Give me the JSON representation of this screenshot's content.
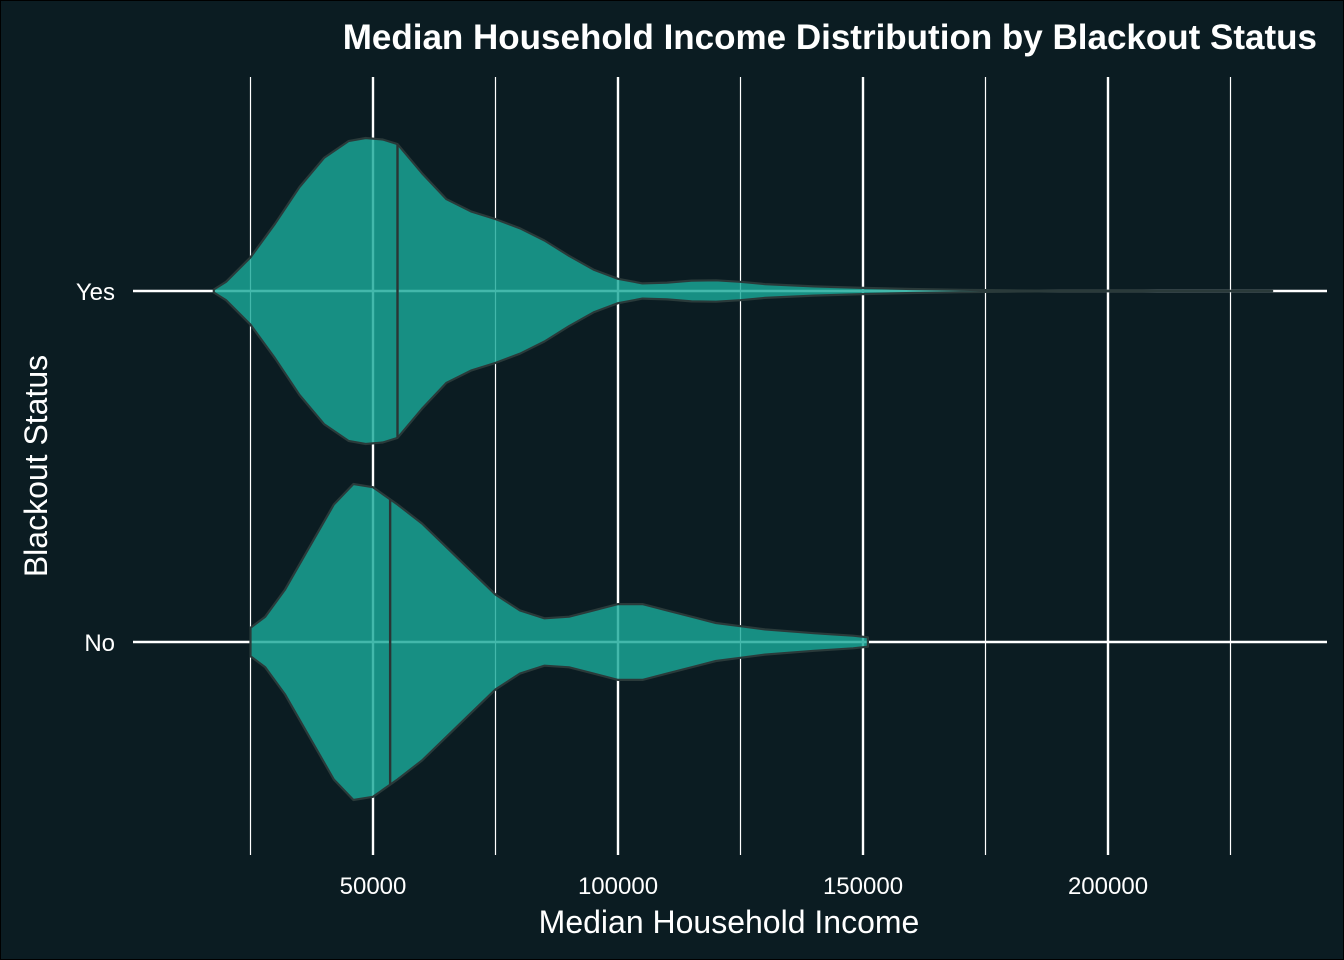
{
  "chart_data": {
    "type": "violin",
    "orientation": "horizontal",
    "title": "Median Household Income Distribution by Blackout Status",
    "xlabel": "Median Household Income",
    "ylabel": "Blackout Status",
    "xlim": [
      15000,
      246000
    ],
    "x_major_ticks": [
      50000,
      100000,
      150000,
      200000
    ],
    "x_minor_ticks": [
      25000,
      75000,
      125000,
      175000,
      225000
    ],
    "categories": [
      "Yes",
      "No"
    ],
    "grid": true,
    "legend": "none",
    "colors": {
      "background": "#0b1c22",
      "violin_fill": "#1aa898",
      "violin_stroke": "#2a3a3a",
      "median_line": "#2a3535",
      "grid": "#ffffff",
      "text": "#ffffff"
    },
    "series": [
      {
        "category": "Yes",
        "min": 17500,
        "max": 233500,
        "median": 55000,
        "density": [
          [
            17500,
            0.01
          ],
          [
            20000,
            0.06
          ],
          [
            25000,
            0.22
          ],
          [
            30000,
            0.44
          ],
          [
            35000,
            0.68
          ],
          [
            40000,
            0.87
          ],
          [
            45000,
            0.98
          ],
          [
            48500,
            1.0
          ],
          [
            52000,
            0.99
          ],
          [
            55000,
            0.96
          ],
          [
            60000,
            0.77
          ],
          [
            65000,
            0.6
          ],
          [
            70000,
            0.52
          ],
          [
            75000,
            0.47
          ],
          [
            80000,
            0.41
          ],
          [
            85000,
            0.33
          ],
          [
            90000,
            0.23
          ],
          [
            95000,
            0.14
          ],
          [
            100000,
            0.08
          ],
          [
            105000,
            0.05
          ],
          [
            110000,
            0.055
          ],
          [
            115000,
            0.068
          ],
          [
            120000,
            0.07
          ],
          [
            125000,
            0.06
          ],
          [
            130000,
            0.045
          ],
          [
            140000,
            0.03
          ],
          [
            150000,
            0.02
          ],
          [
            160000,
            0.013
          ],
          [
            170000,
            0.008
          ],
          [
            180000,
            0.004
          ],
          [
            190000,
            0.002
          ],
          [
            210000,
            0.001
          ],
          [
            233500,
            0.0005
          ]
        ]
      },
      {
        "category": "No",
        "min": 25000,
        "max": 151000,
        "median": 53500,
        "density": [
          [
            25000,
            0.09
          ],
          [
            28000,
            0.16
          ],
          [
            32000,
            0.33
          ],
          [
            37000,
            0.6
          ],
          [
            42000,
            0.87
          ],
          [
            46000,
            1.0
          ],
          [
            50000,
            0.98
          ],
          [
            55000,
            0.87
          ],
          [
            60000,
            0.75
          ],
          [
            65000,
            0.6
          ],
          [
            70000,
            0.45
          ],
          [
            75000,
            0.3
          ],
          [
            80000,
            0.2
          ],
          [
            85000,
            0.15
          ],
          [
            90000,
            0.16
          ],
          [
            95000,
            0.2
          ],
          [
            100000,
            0.24
          ],
          [
            105000,
            0.24
          ],
          [
            110000,
            0.2
          ],
          [
            115000,
            0.16
          ],
          [
            120000,
            0.12
          ],
          [
            125000,
            0.1
          ],
          [
            130000,
            0.08
          ],
          [
            140000,
            0.056
          ],
          [
            148000,
            0.04
          ],
          [
            151000,
            0.03
          ]
        ]
      }
    ]
  }
}
